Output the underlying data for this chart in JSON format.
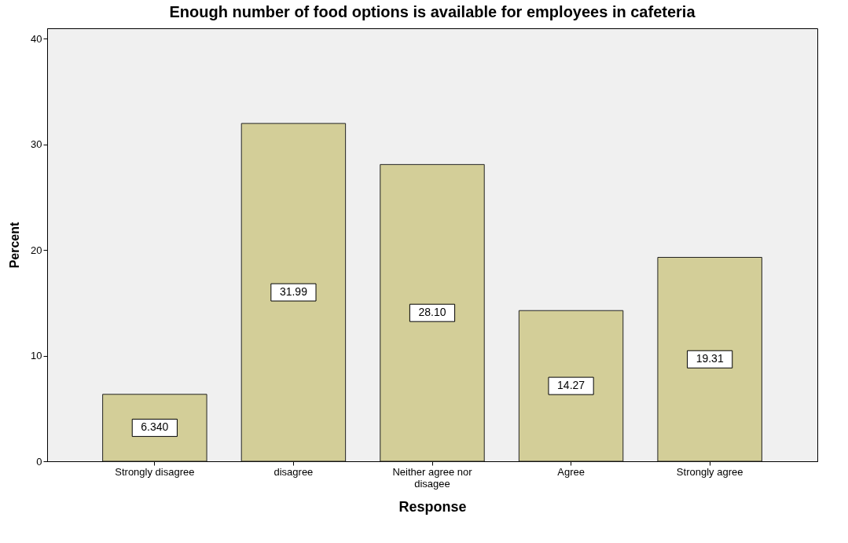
{
  "chart_data": {
    "type": "bar",
    "title": "Enough number of food options is available for employees in cafeteria",
    "xlabel": "Response",
    "ylabel": "Percent",
    "categories": [
      "Strongly disagree",
      "disagree",
      "Neither agree nor disagee",
      "Agree",
      "Strongly agree"
    ],
    "values": [
      6.34,
      31.99,
      28.1,
      14.27,
      19.31
    ],
    "value_labels": [
      "6.340",
      "31.99",
      "28.10",
      "14.27",
      "19.31"
    ],
    "color": "#d3ce98",
    "ylim": [
      0,
      41
    ],
    "yticks": [
      0,
      10,
      20,
      30,
      40
    ],
    "grid": false
  }
}
